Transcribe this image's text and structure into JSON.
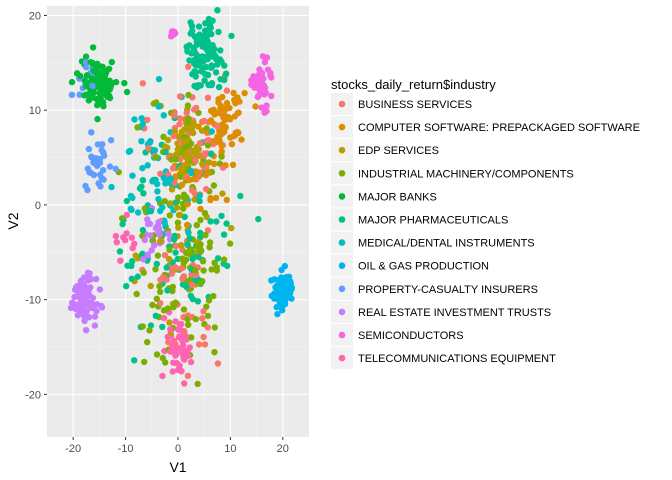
{
  "chart_data": {
    "type": "scatter",
    "xlabel": "V1",
    "ylabel": "V2",
    "xlim": [
      -25,
      25
    ],
    "ylim": [
      -24.5,
      21
    ],
    "x_ticks": [
      -20,
      -10,
      0,
      10,
      20
    ],
    "y_ticks": [
      -20,
      -10,
      0,
      10,
      20
    ],
    "x_tick_labels": [
      "-20",
      "-10",
      "0",
      "10",
      "20"
    ],
    "y_tick_labels": [
      "-20",
      "-10",
      "0",
      "10",
      "20"
    ],
    "grid": true,
    "legend": {
      "title": "stocks_daily_return$industry",
      "placement": "right"
    },
    "series": [
      {
        "name": "BUSINESS SERVICES",
        "color": "#F8766D",
        "clusters": [
          {
            "center": [
              2,
              7
            ],
            "spread": [
              6,
              5
            ],
            "n": 70
          },
          {
            "center": [
              1,
              -8
            ],
            "spread": [
              6,
              8
            ],
            "n": 45
          }
        ]
      },
      {
        "name": "COMPUTER SOFTWARE: PREPACKAGED SOFTWARE",
        "color": "#DE8C00",
        "clusters": [
          {
            "center": [
              9,
              9
            ],
            "spread": [
              3,
              3
            ],
            "n": 70
          },
          {
            "center": [
              4,
              3
            ],
            "spread": [
              5,
              4
            ],
            "n": 30
          }
        ]
      },
      {
        "name": "EDP SERVICES",
        "color": "#B79F00",
        "clusters": [
          {
            "center": [
              2,
              6
            ],
            "spread": [
              3,
              2.5
            ],
            "n": 60
          },
          {
            "center": [
              1,
              -4
            ],
            "spread": [
              6,
              8
            ],
            "n": 35
          }
        ]
      },
      {
        "name": "INDUSTRIAL MACHINERY/COMPONENTS",
        "color": "#7CAE00",
        "clusters": [
          {
            "center": [
              1,
              -6
            ],
            "spread": [
              8,
              10
            ],
            "n": 110
          },
          {
            "center": [
              2,
              5
            ],
            "spread": [
              6,
              5
            ],
            "n": 40
          }
        ]
      },
      {
        "name": "MAJOR BANKS",
        "color": "#00BA38",
        "clusters": [
          {
            "center": [
              -15,
              13
            ],
            "spread": [
              3,
              2
            ],
            "n": 110
          }
        ]
      },
      {
        "name": "MAJOR PHARMACEUTICALS",
        "color": "#00C08B",
        "clusters": [
          {
            "center": [
              5,
              16
            ],
            "spread": [
              3,
              3
            ],
            "n": 100
          },
          {
            "center": [
              0,
              -3
            ],
            "spread": [
              9,
              9
            ],
            "n": 90
          }
        ]
      },
      {
        "name": "MEDICAL/DENTAL INSTRUMENTS",
        "color": "#00BFC4",
        "clusters": [
          {
            "center": [
              -3,
              4
            ],
            "spread": [
              7,
              6
            ],
            "n": 60
          }
        ]
      },
      {
        "name": "OIL & GAS PRODUCTION",
        "color": "#00B4F0",
        "clusters": [
          {
            "center": [
              20,
              -9
            ],
            "spread": [
              1.8,
              1.5
            ],
            "n": 90
          }
        ]
      },
      {
        "name": "PROPERTY-CASUALTY INSURERS",
        "color": "#619CFF",
        "clusters": [
          {
            "center": [
              -15,
              4
            ],
            "spread": [
              2,
              2.5
            ],
            "n": 35
          },
          {
            "center": [
              -18,
              13
            ],
            "spread": [
              2,
              2
            ],
            "n": 15
          }
        ]
      },
      {
        "name": "REAL ESTATE INVESTMENT TRUSTS",
        "color": "#C77CFF",
        "clusters": [
          {
            "center": [
              -18,
              -10
            ],
            "spread": [
              2,
              2
            ],
            "n": 90
          },
          {
            "center": [
              -4,
              -3
            ],
            "spread": [
              2,
              2
            ],
            "n": 25
          }
        ]
      },
      {
        "name": "SEMICONDUCTORS",
        "color": "#F564E3",
        "clusters": [
          {
            "center": [
              16,
              13
            ],
            "spread": [
              1.5,
              2
            ],
            "n": 45
          },
          {
            "center": [
              -1,
              18
            ],
            "spread": [
              0.5,
              0.5
            ],
            "n": 8
          }
        ]
      },
      {
        "name": "TELECOMMUNICATIONS EQUIPMENT",
        "color": "#FF64B0",
        "clusters": [
          {
            "center": [
              0,
              -15
            ],
            "spread": [
              2,
              3
            ],
            "n": 50
          },
          {
            "center": [
              -10,
              -3
            ],
            "spread": [
              2,
              2
            ],
            "n": 10
          }
        ]
      }
    ]
  }
}
